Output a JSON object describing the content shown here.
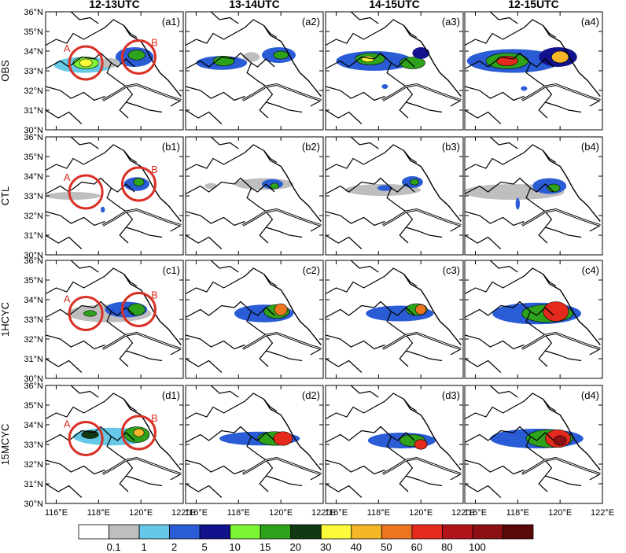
{
  "figure": {
    "column_titles": [
      "12-13UTC",
      "13-14UTC",
      "14-15UTC",
      "12-15UTC"
    ],
    "row_labels": [
      "OBS",
      "CTL",
      "1HCYC",
      "15MCYC"
    ],
    "panel_labels": [
      [
        "(a1)",
        "(a2)",
        "(a3)",
        "(a4)"
      ],
      [
        "(b1)",
        "(b2)",
        "(b3)",
        "(b4)"
      ],
      [
        "(c1)",
        "(c2)",
        "(c3)",
        "(c4)"
      ],
      [
        "(d1)",
        "(d2)",
        "(d3)",
        "(d4)"
      ]
    ],
    "circle_labels": [
      "A",
      "B"
    ],
    "circle_color": "#d93025"
  },
  "chart_data": {
    "type": "heatmap",
    "title": "",
    "lon_ticks": [
      "116°E",
      "118°E",
      "120°E",
      "122°E"
    ],
    "lat_ticks": [
      "36°N",
      "35°N",
      "34°N",
      "33°N",
      "32°N",
      "31°N",
      "30°N"
    ],
    "xlim": [
      115.5,
      122
    ],
    "ylim": [
      30,
      36
    ],
    "colorbar": {
      "labels": [
        "0.1",
        "1",
        "2",
        "5",
        "10",
        "15",
        "20",
        "30",
        "40",
        "50",
        "60",
        "80",
        "100"
      ],
      "colors": [
        "#ffffff",
        "#bebebe",
        "#64c8e6",
        "#2a5cd6",
        "#12128c",
        "#7cf534",
        "#2ea21a",
        "#123a12",
        "#fbfb3c",
        "#f5b628",
        "#ec7620",
        "#e42a1c",
        "#b0141a",
        "#8c0f14",
        "#5a0808"
      ]
    },
    "circles": [
      {
        "panel": "a1",
        "label": "A",
        "lon": 117.4,
        "lat": 33.4
      },
      {
        "panel": "a1",
        "label": "B",
        "lon": 119.9,
        "lat": 33.7
      },
      {
        "panel": "b1",
        "label": "A",
        "lon": 117.4,
        "lat": 33.2
      },
      {
        "panel": "b1",
        "label": "B",
        "lon": 119.9,
        "lat": 33.6
      },
      {
        "panel": "c1",
        "label": "A",
        "lon": 117.4,
        "lat": 33.3
      },
      {
        "panel": "c1",
        "label": "B",
        "lon": 119.9,
        "lat": 33.5
      },
      {
        "panel": "d1",
        "label": "A",
        "lon": 117.4,
        "lat": 33.3
      },
      {
        "panel": "d1",
        "label": "B",
        "lon": 119.9,
        "lat": 33.6
      }
    ],
    "precip_blobs": [
      [
        [
          {
            "lon": 117.3,
            "lat": 33.3,
            "rx": 1.4,
            "ry": 0.4,
            "level": 2
          },
          {
            "lon": 117.4,
            "lat": 33.4,
            "rx": 0.6,
            "ry": 0.3,
            "level": 5
          },
          {
            "lon": 117.4,
            "lat": 33.4,
            "rx": 0.3,
            "ry": 0.2,
            "level": 8
          },
          {
            "lon": 119.7,
            "lat": 33.7,
            "rx": 0.9,
            "ry": 0.5,
            "level": 3
          },
          {
            "lon": 119.8,
            "lat": 33.8,
            "rx": 0.4,
            "ry": 0.25,
            "level": 6
          },
          {
            "lon": 118.5,
            "lat": 33.4,
            "rx": 0.5,
            "ry": 0.25,
            "level": 1
          }
        ],
        [
          {
            "lon": 117.2,
            "lat": 33.4,
            "rx": 1.2,
            "ry": 0.35,
            "level": 3
          },
          {
            "lon": 117.3,
            "lat": 33.5,
            "rx": 0.5,
            "ry": 0.25,
            "level": 6
          },
          {
            "lon": 119.9,
            "lat": 33.8,
            "rx": 0.8,
            "ry": 0.4,
            "level": 3
          },
          {
            "lon": 120.0,
            "lat": 33.8,
            "rx": 0.35,
            "ry": 0.2,
            "level": 6
          },
          {
            "lon": 118.6,
            "lat": 33.7,
            "rx": 0.4,
            "ry": 0.25,
            "level": 1
          }
        ],
        [
          {
            "lon": 117.8,
            "lat": 33.5,
            "rx": 1.8,
            "ry": 0.5,
            "level": 3
          },
          {
            "lon": 117.6,
            "lat": 33.6,
            "rx": 0.7,
            "ry": 0.3,
            "level": 6
          },
          {
            "lon": 117.5,
            "lat": 33.6,
            "rx": 0.3,
            "ry": 0.15,
            "level": 8
          },
          {
            "lon": 119.6,
            "lat": 33.4,
            "rx": 0.6,
            "ry": 0.3,
            "level": 6
          },
          {
            "lon": 120.0,
            "lat": 33.9,
            "rx": 0.4,
            "ry": 0.3,
            "level": 4
          },
          {
            "lon": 118.3,
            "lat": 32.2,
            "rx": 0.15,
            "ry": 0.12,
            "level": 3
          }
        ],
        [
          {
            "lon": 117.8,
            "lat": 33.5,
            "rx": 2.2,
            "ry": 0.6,
            "level": 3
          },
          {
            "lon": 117.5,
            "lat": 33.5,
            "rx": 1.0,
            "ry": 0.4,
            "level": 6
          },
          {
            "lon": 117.5,
            "lat": 33.5,
            "rx": 0.5,
            "ry": 0.25,
            "level": 11
          },
          {
            "lon": 119.9,
            "lat": 33.7,
            "rx": 0.9,
            "ry": 0.5,
            "level": 4
          },
          {
            "lon": 120.0,
            "lat": 33.7,
            "rx": 0.4,
            "ry": 0.3,
            "level": 9
          },
          {
            "lon": 118.3,
            "lat": 32.1,
            "rx": 0.15,
            "ry": 0.12,
            "level": 3
          }
        ]
      ],
      [
        [
          {
            "lon": 116.8,
            "lat": 33.0,
            "rx": 1.3,
            "ry": 0.2,
            "level": 1
          },
          {
            "lon": 119.8,
            "lat": 33.6,
            "rx": 0.6,
            "ry": 0.35,
            "level": 3
          },
          {
            "lon": 119.9,
            "lat": 33.7,
            "rx": 0.25,
            "ry": 0.2,
            "level": 6
          },
          {
            "lon": 118.2,
            "lat": 32.3,
            "rx": 0.1,
            "ry": 0.15,
            "level": 3
          }
        ],
        [
          {
            "lon": 119.2,
            "lat": 33.6,
            "rx": 1.4,
            "ry": 0.3,
            "level": 1
          },
          {
            "lon": 119.6,
            "lat": 33.6,
            "rx": 0.5,
            "ry": 0.25,
            "level": 3
          },
          {
            "lon": 119.7,
            "lat": 33.5,
            "rx": 0.2,
            "ry": 0.15,
            "level": 6
          },
          {
            "lon": 116.7,
            "lat": 33.5,
            "rx": 0.3,
            "ry": 0.15,
            "level": 1
          }
        ],
        [
          {
            "lon": 118.2,
            "lat": 33.3,
            "rx": 1.8,
            "ry": 0.3,
            "level": 1
          },
          {
            "lon": 119.6,
            "lat": 33.7,
            "rx": 0.5,
            "ry": 0.3,
            "level": 3
          },
          {
            "lon": 119.7,
            "lat": 33.7,
            "rx": 0.2,
            "ry": 0.15,
            "level": 6
          },
          {
            "lon": 118.3,
            "lat": 33.4,
            "rx": 0.35,
            "ry": 0.15,
            "level": 3
          }
        ],
        [
          {
            "lon": 117.8,
            "lat": 33.2,
            "rx": 2.4,
            "ry": 0.4,
            "level": 1
          },
          {
            "lon": 119.5,
            "lat": 33.5,
            "rx": 0.8,
            "ry": 0.4,
            "level": 3
          },
          {
            "lon": 119.7,
            "lat": 33.4,
            "rx": 0.3,
            "ry": 0.2,
            "level": 6
          },
          {
            "lon": 118.0,
            "lat": 32.6,
            "rx": 0.1,
            "ry": 0.3,
            "level": 3
          }
        ]
      ],
      [
        [
          {
            "lon": 118.5,
            "lat": 33.3,
            "rx": 2.0,
            "ry": 0.45,
            "level": 1
          },
          {
            "lon": 119.3,
            "lat": 33.5,
            "rx": 1.0,
            "ry": 0.4,
            "level": 3
          },
          {
            "lon": 119.8,
            "lat": 33.5,
            "rx": 0.4,
            "ry": 0.3,
            "level": 6
          },
          {
            "lon": 117.6,
            "lat": 33.3,
            "rx": 0.3,
            "ry": 0.15,
            "level": 6
          }
        ],
        [
          {
            "lon": 119.2,
            "lat": 33.3,
            "rx": 1.4,
            "ry": 0.45,
            "level": 3
          },
          {
            "lon": 119.8,
            "lat": 33.4,
            "rx": 0.6,
            "ry": 0.35,
            "level": 6
          },
          {
            "lon": 120.0,
            "lat": 33.5,
            "rx": 0.3,
            "ry": 0.3,
            "level": 10
          }
        ],
        [
          {
            "lon": 119.0,
            "lat": 33.3,
            "rx": 1.6,
            "ry": 0.4,
            "level": 3
          },
          {
            "lon": 119.8,
            "lat": 33.5,
            "rx": 0.5,
            "ry": 0.3,
            "level": 6
          },
          {
            "lon": 120.0,
            "lat": 33.5,
            "rx": 0.25,
            "ry": 0.25,
            "level": 10
          }
        ],
        [
          {
            "lon": 118.9,
            "lat": 33.3,
            "rx": 2.1,
            "ry": 0.55,
            "level": 3
          },
          {
            "lon": 119.4,
            "lat": 33.3,
            "rx": 1.2,
            "ry": 0.45,
            "level": 6
          },
          {
            "lon": 119.8,
            "lat": 33.4,
            "rx": 0.6,
            "ry": 0.5,
            "level": 11
          }
        ]
      ],
      [
        [
          {
            "lon": 118.6,
            "lat": 33.4,
            "rx": 1.8,
            "ry": 0.45,
            "level": 2
          },
          {
            "lon": 119.8,
            "lat": 33.5,
            "rx": 0.6,
            "ry": 0.4,
            "level": 6
          },
          {
            "lon": 117.6,
            "lat": 33.5,
            "rx": 0.4,
            "ry": 0.2,
            "level": 7
          },
          {
            "lon": 119.9,
            "lat": 33.6,
            "rx": 0.25,
            "ry": 0.2,
            "level": 9
          }
        ],
        [
          {
            "lon": 119.0,
            "lat": 33.3,
            "rx": 1.9,
            "ry": 0.35,
            "level": 3
          },
          {
            "lon": 119.7,
            "lat": 33.3,
            "rx": 0.8,
            "ry": 0.35,
            "level": 6
          },
          {
            "lon": 120.1,
            "lat": 33.3,
            "rx": 0.45,
            "ry": 0.35,
            "level": 11
          }
        ],
        [
          {
            "lon": 119.1,
            "lat": 33.2,
            "rx": 1.6,
            "ry": 0.4,
            "level": 3
          },
          {
            "lon": 119.6,
            "lat": 33.2,
            "rx": 0.6,
            "ry": 0.3,
            "level": 6
          },
          {
            "lon": 120.0,
            "lat": 33.0,
            "rx": 0.3,
            "ry": 0.25,
            "level": 11
          }
        ],
        [
          {
            "lon": 118.9,
            "lat": 33.3,
            "rx": 2.2,
            "ry": 0.5,
            "level": 3
          },
          {
            "lon": 119.5,
            "lat": 33.3,
            "rx": 1.1,
            "ry": 0.45,
            "level": 6
          },
          {
            "lon": 119.9,
            "lat": 33.3,
            "rx": 0.6,
            "ry": 0.45,
            "level": 11
          },
          {
            "lon": 120.0,
            "lat": 33.2,
            "rx": 0.3,
            "ry": 0.25,
            "level": 13
          }
        ]
      ]
    ]
  }
}
